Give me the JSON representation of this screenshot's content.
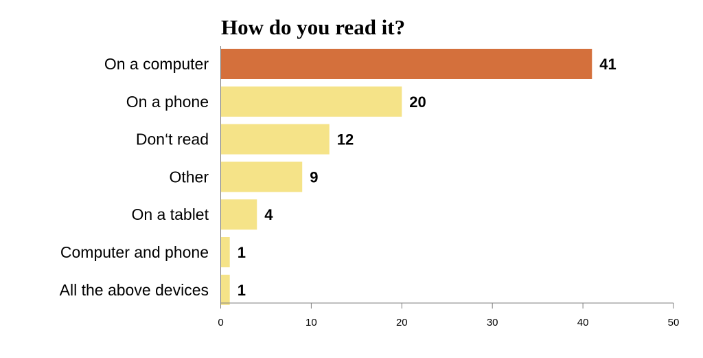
{
  "chart_data": {
    "type": "bar",
    "orientation": "horizontal",
    "title": "How do you read it?",
    "xlabel": "",
    "ylabel": "",
    "categories": [
      "On a computer",
      "On a phone",
      "Don‘t read",
      "Other",
      "On a tablet",
      "Computer and phone",
      "All the above devices"
    ],
    "values": [
      41,
      20,
      12,
      9,
      4,
      1,
      1
    ],
    "xlim": [
      0,
      50
    ],
    "xticks": [
      0,
      10,
      20,
      30,
      40,
      50
    ],
    "grid": false,
    "legend": "none",
    "highlight_color": "#d4703c",
    "bar_color": "#f5e388",
    "axis_color": "#7f7f7f"
  }
}
